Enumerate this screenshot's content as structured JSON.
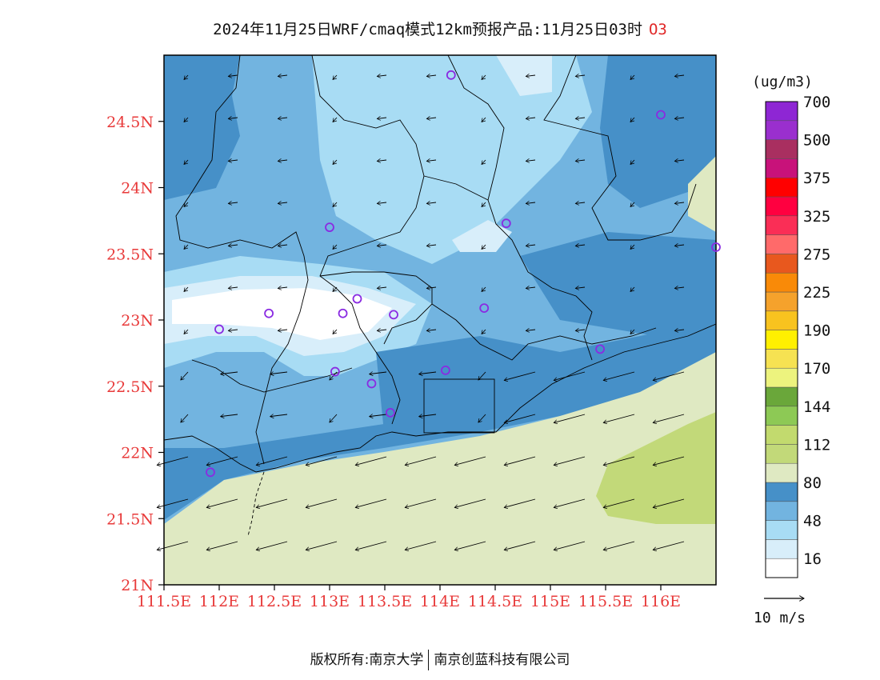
{
  "header": {
    "title": "2024年11月25日WRF/cmaq模式12km预报产品:11月25日03时",
    "species": "O3"
  },
  "map": {
    "lon_range": [
      111.5,
      116.5
    ],
    "lat_range": [
      21.0,
      25.0
    ],
    "lat_ticks": [
      {
        "value": 21.0,
        "label": "21N"
      },
      {
        "value": 21.5,
        "label": "21.5N"
      },
      {
        "value": 22.0,
        "label": "22N"
      },
      {
        "value": 22.5,
        "label": "22.5N"
      },
      {
        "value": 23.0,
        "label": "23N"
      },
      {
        "value": 23.5,
        "label": "23.5N"
      },
      {
        "value": 24.0,
        "label": "24N"
      },
      {
        "value": 24.5,
        "label": "24.5N"
      }
    ],
    "lon_ticks": [
      {
        "value": 111.5,
        "label": "111.5E"
      },
      {
        "value": 112.0,
        "label": "112E"
      },
      {
        "value": 112.5,
        "label": "112.5E"
      },
      {
        "value": 113.0,
        "label": "113E"
      },
      {
        "value": 113.5,
        "label": "113.5E"
      },
      {
        "value": 114.0,
        "label": "114E"
      },
      {
        "value": 114.5,
        "label": "114.5E"
      },
      {
        "value": 115.0,
        "label": "115E"
      },
      {
        "value": 115.5,
        "label": "115.5E"
      },
      {
        "value": 116.0,
        "label": "116E"
      }
    ],
    "stations": [
      {
        "lon": 114.1,
        "lat": 24.85
      },
      {
        "lon": 116.0,
        "lat": 24.55
      },
      {
        "lon": 114.6,
        "lat": 23.73
      },
      {
        "lon": 113.0,
        "lat": 23.7
      },
      {
        "lon": 116.5,
        "lat": 23.55
      },
      {
        "lon": 113.25,
        "lat": 23.16
      },
      {
        "lon": 112.45,
        "lat": 23.05
      },
      {
        "lon": 113.12,
        "lat": 23.05
      },
      {
        "lon": 113.58,
        "lat": 23.04
      },
      {
        "lon": 114.4,
        "lat": 23.09
      },
      {
        "lon": 112.0,
        "lat": 22.93
      },
      {
        "lon": 115.45,
        "lat": 22.78
      },
      {
        "lon": 113.05,
        "lat": 22.61
      },
      {
        "lon": 114.05,
        "lat": 22.62
      },
      {
        "lon": 113.38,
        "lat": 22.52
      },
      {
        "lon": 113.55,
        "lat": 22.3
      },
      {
        "lon": 111.92,
        "lat": 21.85
      }
    ]
  },
  "colorbar": {
    "unit": "(ug/m3)",
    "colors": [
      "#ffffff",
      "#d8eefa",
      "#a8dcf4",
      "#72b4e0",
      "#4690c8",
      "#dfe9c2",
      "#c2d979",
      "#c2da6e",
      "#8dc955",
      "#6aa73a",
      "#edf37e",
      "#f6e252",
      "#fff000",
      "#f8c31f",
      "#f5a22c",
      "#f98a08",
      "#e8581e",
      "#ff6a6a",
      "#fa2e56",
      "#ff0040",
      "#ff0000",
      "#c8127a",
      "#a92f60",
      "#9a2fce",
      "#8e26d4"
    ],
    "labels": [
      "16",
      "48",
      "80",
      "112",
      "144",
      "170",
      "190",
      "225",
      "275",
      "325",
      "375",
      "500",
      "700"
    ]
  },
  "wind_legend": {
    "label": "10 m/s"
  },
  "footer": {
    "left": "版权所有:南京大学",
    "right": "南京创蓝科技有限公司"
  }
}
